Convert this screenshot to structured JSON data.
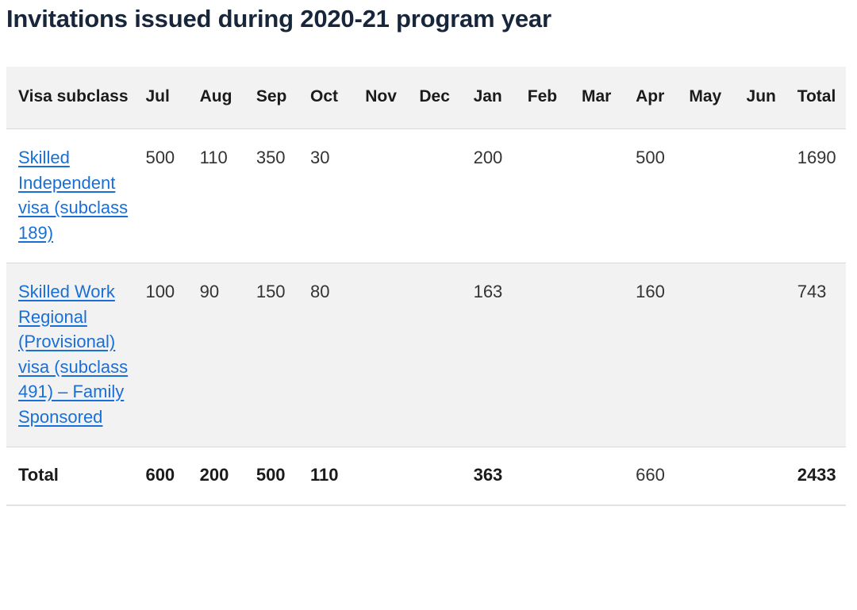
{
  "page": {
    "title": "Invitations issued during 2020-21 program year"
  },
  "table": {
    "headers": [
      "Visa subclass",
      "Jul",
      "Aug",
      "Sep",
      "Oct",
      "Nov",
      "Dec",
      "Jan",
      "Feb",
      "Mar",
      "Apr",
      "May",
      "Jun",
      "Total"
    ],
    "rows": [
      {
        "visa": "Skilled Independent visa (subclass 189)",
        "values": [
          "500",
          "110",
          "350",
          "30",
          "",
          "",
          "200",
          "",
          "",
          "500",
          "",
          "",
          "1690"
        ]
      },
      {
        "visa": "Skilled Work Regional (Provisional) visa (subclass 491) – Family Sponsored",
        "values": [
          "100",
          "90",
          "150",
          "80",
          "",
          "",
          "163",
          "",
          "",
          "160",
          "",
          "",
          "743"
        ]
      }
    ],
    "total_row": {
      "label": "Total",
      "values": [
        "600",
        "200",
        "500",
        "110",
        "",
        "",
        "363",
        "",
        "",
        "660",
        "",
        "",
        "2433"
      ]
    }
  },
  "colors": {
    "title": "#17263a",
    "link": "#1a6fd6",
    "header_bg": "#f2f2f2",
    "row_alt_bg": "#f2f2f2"
  }
}
